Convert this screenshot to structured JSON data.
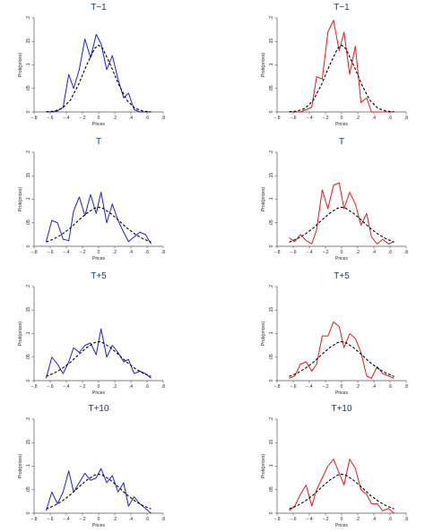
{
  "chart_data": [
    {
      "type": "line",
      "title": "T−1",
      "xlabel": "Prices",
      "ylabel": "Prob(prices)",
      "xlim": [
        -0.8,
        0.8
      ],
      "ylim": [
        0,
        0.2
      ],
      "xticks": [
        "−.8",
        "−.6",
        "−.4",
        "−.2",
        "0",
        ".2",
        ".4",
        ".6",
        ".8"
      ],
      "yticks": [
        "0",
        ".05",
        ".1",
        ".15",
        ".2"
      ],
      "grid": false,
      "series": [
        {
          "color": "#1f1fd6",
          "style": "solid",
          "x": [
            -0.65,
            -0.58,
            -0.51,
            -0.44,
            -0.37,
            -0.31,
            -0.24,
            -0.17,
            -0.1,
            -0.03,
            0.03,
            0.1,
            0.17,
            0.24,
            0.31,
            0.37,
            0.44,
            0.51,
            0.58,
            0.65
          ],
          "y": [
            0.0,
            0.0,
            0.002,
            0.01,
            0.08,
            0.05,
            0.09,
            0.155,
            0.115,
            0.165,
            0.145,
            0.09,
            0.12,
            0.07,
            0.03,
            0.04,
            0.005,
            0.0,
            0.0,
            0.0
          ]
        },
        {
          "color": "#000000",
          "style": "dashed",
          "x": [
            -0.65,
            -0.55,
            -0.45,
            -0.35,
            -0.25,
            -0.15,
            -0.05,
            0.0,
            0.05,
            0.15,
            0.25,
            0.35,
            0.45,
            0.55,
            0.65
          ],
          "y": [
            0.0003,
            0.0018,
            0.0079,
            0.025,
            0.058,
            0.099,
            0.135,
            0.142,
            0.135,
            0.099,
            0.058,
            0.025,
            0.0079,
            0.0018,
            0.0003
          ]
        }
      ]
    },
    {
      "type": "line",
      "title": "T−1",
      "xlabel": "Prices",
      "ylabel": "Prob(prices)",
      "xlim": [
        -0.8,
        0.8
      ],
      "ylim": [
        0,
        0.2
      ],
      "xticks": [
        "−.8",
        "−.6",
        "−.4",
        "−.2",
        "0",
        ".2",
        ".4",
        ".6",
        ".8"
      ],
      "yticks": [
        "0",
        ".05",
        ".1",
        ".15",
        ".2"
      ],
      "grid": false,
      "series": [
        {
          "color": "#e41a1c",
          "style": "solid",
          "x": [
            -0.65,
            -0.58,
            -0.51,
            -0.44,
            -0.37,
            -0.31,
            -0.24,
            -0.17,
            -0.1,
            -0.03,
            0.03,
            0.1,
            0.17,
            0.24,
            0.31,
            0.37,
            0.44,
            0.51,
            0.58,
            0.65
          ],
          "y": [
            0.0,
            0.0,
            0.0,
            0.005,
            0.01,
            0.075,
            0.07,
            0.17,
            0.195,
            0.13,
            0.17,
            0.08,
            0.14,
            0.02,
            0.03,
            0.0,
            0.0,
            0.0,
            0.0,
            0.0
          ]
        },
        {
          "color": "#000000",
          "style": "dashed",
          "x": [
            -0.65,
            -0.55,
            -0.45,
            -0.35,
            -0.25,
            -0.15,
            -0.05,
            0.0,
            0.05,
            0.15,
            0.25,
            0.35,
            0.45,
            0.55,
            0.65
          ],
          "y": [
            0.0003,
            0.0018,
            0.0079,
            0.025,
            0.058,
            0.099,
            0.135,
            0.142,
            0.135,
            0.099,
            0.058,
            0.025,
            0.0079,
            0.0018,
            0.0003
          ]
        }
      ]
    },
    {
      "type": "line",
      "title": "T",
      "xlabel": "Prices",
      "ylabel": "Prob(prices)",
      "xlim": [
        -0.8,
        0.8
      ],
      "ylim": [
        0,
        0.2
      ],
      "xticks": [
        "−.8",
        "−.6",
        "−.4",
        "−.2",
        "0",
        ".2",
        ".4",
        ".6",
        ".8"
      ],
      "yticks": [
        "0",
        ".05",
        ".1",
        ".15",
        ".2"
      ],
      "grid": false,
      "series": [
        {
          "color": "#1f1fd6",
          "style": "solid",
          "x": [
            -0.65,
            -0.58,
            -0.51,
            -0.44,
            -0.37,
            -0.31,
            -0.24,
            -0.17,
            -0.1,
            -0.03,
            0.03,
            0.1,
            0.17,
            0.24,
            0.31,
            0.37,
            0.44,
            0.51,
            0.58,
            0.65
          ],
          "y": [
            0.01,
            0.055,
            0.05,
            0.015,
            0.012,
            0.075,
            0.105,
            0.065,
            0.11,
            0.07,
            0.115,
            0.05,
            0.09,
            0.055,
            0.03,
            0.01,
            0.02,
            0.03,
            0.025,
            0.005
          ]
        },
        {
          "color": "#000000",
          "style": "dashed",
          "x": [
            -0.65,
            -0.55,
            -0.45,
            -0.35,
            -0.25,
            -0.15,
            -0.05,
            0.0,
            0.05,
            0.15,
            0.25,
            0.35,
            0.45,
            0.55,
            0.65
          ],
          "y": [
            0.009,
            0.016,
            0.026,
            0.039,
            0.055,
            0.07,
            0.081,
            0.083,
            0.081,
            0.07,
            0.055,
            0.039,
            0.026,
            0.016,
            0.009
          ]
        }
      ]
    },
    {
      "type": "line",
      "title": "T",
      "xlabel": "Prices",
      "ylabel": "Prob(prices)",
      "xlim": [
        -0.8,
        0.8
      ],
      "ylim": [
        0,
        0.2
      ],
      "xticks": [
        "−.8",
        "−.6",
        "−.4",
        "−.2",
        "0",
        ".2",
        ".4",
        ".6",
        ".8"
      ],
      "yticks": [
        "0",
        ".05",
        ".1",
        ".15",
        ".2"
      ],
      "grid": false,
      "series": [
        {
          "color": "#e41a1c",
          "style": "solid",
          "x": [
            -0.65,
            -0.58,
            -0.51,
            -0.44,
            -0.37,
            -0.31,
            -0.24,
            -0.17,
            -0.1,
            -0.03,
            0.03,
            0.1,
            0.17,
            0.24,
            0.31,
            0.37,
            0.44,
            0.51,
            0.58,
            0.65
          ],
          "y": [
            0.018,
            0.01,
            0.025,
            0.012,
            0.005,
            0.035,
            0.12,
            0.08,
            0.13,
            0.135,
            0.08,
            0.115,
            0.09,
            0.045,
            0.07,
            0.02,
            0.005,
            0.015,
            0.005,
            0.01
          ]
        },
        {
          "color": "#000000",
          "style": "dashed",
          "x": [
            -0.65,
            -0.55,
            -0.45,
            -0.35,
            -0.25,
            -0.15,
            -0.05,
            0.0,
            0.05,
            0.15,
            0.25,
            0.35,
            0.45,
            0.55,
            0.65
          ],
          "y": [
            0.009,
            0.016,
            0.026,
            0.039,
            0.055,
            0.07,
            0.081,
            0.083,
            0.081,
            0.07,
            0.055,
            0.039,
            0.026,
            0.016,
            0.009
          ]
        }
      ]
    },
    {
      "type": "line",
      "title": "T+5",
      "xlabel": "Prices",
      "ylabel": "Prob(prices)",
      "xlim": [
        -0.8,
        0.8
      ],
      "ylim": [
        0,
        0.2
      ],
      "xticks": [
        "−.8",
        "−.6",
        "−.4",
        "−.2",
        "0",
        ".2",
        ".4",
        ".6",
        ".8"
      ],
      "yticks": [
        "0",
        ".05",
        ".1",
        ".15",
        ".2"
      ],
      "grid": false,
      "series": [
        {
          "color": "#1f1fd6",
          "style": "solid",
          "x": [
            -0.65,
            -0.58,
            -0.51,
            -0.44,
            -0.37,
            -0.31,
            -0.24,
            -0.17,
            -0.1,
            -0.03,
            0.03,
            0.1,
            0.17,
            0.24,
            0.31,
            0.37,
            0.44,
            0.51,
            0.58,
            0.65
          ],
          "y": [
            0.005,
            0.05,
            0.035,
            0.015,
            0.04,
            0.07,
            0.06,
            0.075,
            0.08,
            0.055,
            0.11,
            0.05,
            0.075,
            0.06,
            0.04,
            0.045,
            0.015,
            0.02,
            0.015,
            0.005
          ]
        },
        {
          "color": "#000000",
          "style": "dashed",
          "x": [
            -0.65,
            -0.55,
            -0.45,
            -0.35,
            -0.25,
            -0.15,
            -0.05,
            0.0,
            0.05,
            0.15,
            0.25,
            0.35,
            0.45,
            0.55,
            0.65
          ],
          "y": [
            0.009,
            0.016,
            0.026,
            0.039,
            0.055,
            0.07,
            0.081,
            0.083,
            0.081,
            0.07,
            0.055,
            0.039,
            0.026,
            0.016,
            0.009
          ]
        }
      ]
    },
    {
      "type": "line",
      "title": "T+5",
      "xlabel": "Prices",
      "ylabel": "Prob(prices)",
      "xlim": [
        -0.8,
        0.8
      ],
      "ylim": [
        0,
        0.2
      ],
      "xticks": [
        "−.8",
        "−.6",
        "−.4",
        "−.2",
        "0",
        ".2",
        ".4",
        ".6",
        ".8"
      ],
      "yticks": [
        "0",
        ".05",
        ".1",
        ".15",
        ".2"
      ],
      "grid": false,
      "series": [
        {
          "color": "#e41a1c",
          "style": "solid",
          "x": [
            -0.65,
            -0.58,
            -0.51,
            -0.44,
            -0.37,
            -0.31,
            -0.24,
            -0.17,
            -0.1,
            -0.03,
            0.03,
            0.1,
            0.17,
            0.24,
            0.31,
            0.37,
            0.44,
            0.51,
            0.58,
            0.65
          ],
          "y": [
            0.005,
            0.01,
            0.035,
            0.04,
            0.02,
            0.035,
            0.095,
            0.095,
            0.125,
            0.115,
            0.07,
            0.1,
            0.09,
            0.06,
            0.01,
            0.005,
            0.03,
            0.015,
            0.01,
            0.005
          ]
        },
        {
          "color": "#000000",
          "style": "dashed",
          "x": [
            -0.65,
            -0.55,
            -0.45,
            -0.35,
            -0.25,
            -0.15,
            -0.05,
            0.0,
            0.05,
            0.15,
            0.25,
            0.35,
            0.45,
            0.55,
            0.65
          ],
          "y": [
            0.009,
            0.016,
            0.026,
            0.039,
            0.055,
            0.07,
            0.081,
            0.083,
            0.081,
            0.07,
            0.055,
            0.039,
            0.026,
            0.016,
            0.009
          ]
        }
      ]
    },
    {
      "type": "line",
      "title": "T+10",
      "xlabel": "Prices",
      "ylabel": "Prob(prices)",
      "xlim": [
        -0.8,
        0.8
      ],
      "ylim": [
        0,
        0.2
      ],
      "xticks": [
        "−.8",
        "−.6",
        "−.4",
        "−.2",
        "0",
        ".2",
        ".4",
        ".6",
        ".8"
      ],
      "yticks": [
        "0",
        ".05",
        ".1",
        ".15",
        ".2"
      ],
      "grid": false,
      "series": [
        {
          "color": "#1f1fd6",
          "style": "solid",
          "x": [
            -0.65,
            -0.58,
            -0.51,
            -0.44,
            -0.37,
            -0.31,
            -0.24,
            -0.17,
            -0.1,
            -0.03,
            0.03,
            0.1,
            0.17,
            0.24,
            0.31,
            0.37,
            0.44,
            0.51,
            0.58,
            0.65
          ],
          "y": [
            0.005,
            0.045,
            0.02,
            0.045,
            0.09,
            0.045,
            0.065,
            0.085,
            0.07,
            0.075,
            0.095,
            0.065,
            0.08,
            0.045,
            0.065,
            0.015,
            0.035,
            0.02,
            0.01,
            0.0
          ]
        },
        {
          "color": "#000000",
          "style": "dashed",
          "x": [
            -0.65,
            -0.55,
            -0.45,
            -0.35,
            -0.25,
            -0.15,
            -0.05,
            0.0,
            0.05,
            0.15,
            0.25,
            0.35,
            0.45,
            0.55,
            0.65
          ],
          "y": [
            0.009,
            0.016,
            0.026,
            0.039,
            0.055,
            0.07,
            0.081,
            0.083,
            0.081,
            0.07,
            0.055,
            0.039,
            0.026,
            0.016,
            0.009
          ]
        }
      ]
    },
    {
      "type": "line",
      "title": "T+10",
      "xlabel": "Prices",
      "ylabel": "Prob(prices)",
      "xlim": [
        -0.8,
        0.8
      ],
      "ylim": [
        0,
        0.2
      ],
      "xticks": [
        "−.8",
        "−.6",
        "−.4",
        "−.2",
        "0",
        ".2",
        ".4",
        ".6",
        ".8"
      ],
      "yticks": [
        "0",
        ".05",
        ".1",
        ".15",
        ".2"
      ],
      "grid": false,
      "series": [
        {
          "color": "#e41a1c",
          "style": "solid",
          "x": [
            -0.65,
            -0.58,
            -0.51,
            -0.44,
            -0.37,
            -0.31,
            -0.24,
            -0.17,
            -0.1,
            -0.03,
            0.03,
            0.1,
            0.17,
            0.24,
            0.31,
            0.37,
            0.44,
            0.51,
            0.58,
            0.65
          ],
          "y": [
            0.005,
            0.015,
            0.04,
            0.06,
            0.015,
            0.05,
            0.075,
            0.1,
            0.115,
            0.085,
            0.06,
            0.115,
            0.095,
            0.05,
            0.04,
            0.02,
            0.02,
            0.005,
            0.01,
            0.0
          ]
        },
        {
          "color": "#000000",
          "style": "dashed",
          "x": [
            -0.65,
            -0.55,
            -0.45,
            -0.35,
            -0.25,
            -0.15,
            -0.05,
            0.0,
            0.05,
            0.15,
            0.25,
            0.35,
            0.45,
            0.55,
            0.65
          ],
          "y": [
            0.009,
            0.016,
            0.026,
            0.039,
            0.055,
            0.07,
            0.081,
            0.083,
            0.081,
            0.07,
            0.055,
            0.039,
            0.026,
            0.016,
            0.009
          ]
        }
      ]
    }
  ]
}
